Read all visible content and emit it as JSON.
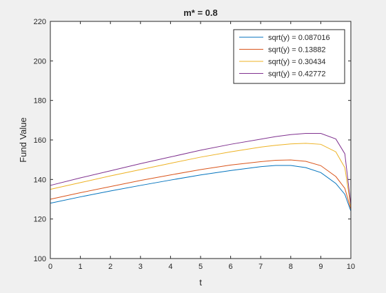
{
  "chart_data": {
    "type": "line",
    "title": "m* = 0.8",
    "xlabel": "t",
    "ylabel": "Fund Value",
    "xlim": [
      0,
      10
    ],
    "ylim": [
      100,
      220
    ],
    "xticks": [
      0,
      1,
      2,
      3,
      4,
      5,
      6,
      7,
      8,
      9,
      10
    ],
    "yticks": [
      100,
      120,
      140,
      160,
      180,
      200,
      220
    ],
    "grid": false,
    "legend_position": "top-right",
    "series": [
      {
        "name": "sqrt(y) = 0.087016",
        "color": "#0072BD",
        "x": [
          0,
          1,
          2,
          3,
          4,
          5,
          6,
          7,
          7.5,
          8,
          8.5,
          9,
          9.5,
          9.8,
          10
        ],
        "y": [
          128,
          131.2,
          134.2,
          137.0,
          139.7,
          142.3,
          144.5,
          146.5,
          147.1,
          147.1,
          146.0,
          143.5,
          138.0,
          132.5,
          124.0
        ]
      },
      {
        "name": "sqrt(y) = 0.13882",
        "color": "#D95319",
        "x": [
          0,
          1,
          2,
          3,
          4,
          5,
          6,
          7,
          7.5,
          8,
          8.5,
          9,
          9.5,
          9.8,
          10
        ],
        "y": [
          130,
          133.3,
          136.4,
          139.5,
          142.3,
          145.0,
          147.3,
          149.0,
          149.7,
          149.9,
          149.2,
          147.0,
          141.5,
          135.5,
          125.0
        ]
      },
      {
        "name": "sqrt(y) = 0.30434",
        "color": "#EDB120",
        "x": [
          0,
          1,
          2,
          3,
          4,
          5,
          6,
          7,
          7.5,
          8,
          8.5,
          9,
          9.5,
          9.8,
          10
        ],
        "y": [
          135,
          138.4,
          141.8,
          145.0,
          148.2,
          151.3,
          154.0,
          156.4,
          157.3,
          158.0,
          158.3,
          157.8,
          154.0,
          146.0,
          126.0
        ]
      },
      {
        "name": "sqrt(y) = 0.42772",
        "color": "#7E2F8E",
        "x": [
          0,
          1,
          2,
          3,
          4,
          5,
          6,
          7,
          7.5,
          8,
          8.5,
          9,
          9.5,
          9.8,
          10
        ],
        "y": [
          137,
          140.8,
          144.4,
          148.0,
          151.4,
          154.8,
          157.8,
          160.4,
          161.7,
          162.7,
          163.3,
          163.3,
          160.5,
          153.0,
          127.0
        ]
      }
    ]
  }
}
